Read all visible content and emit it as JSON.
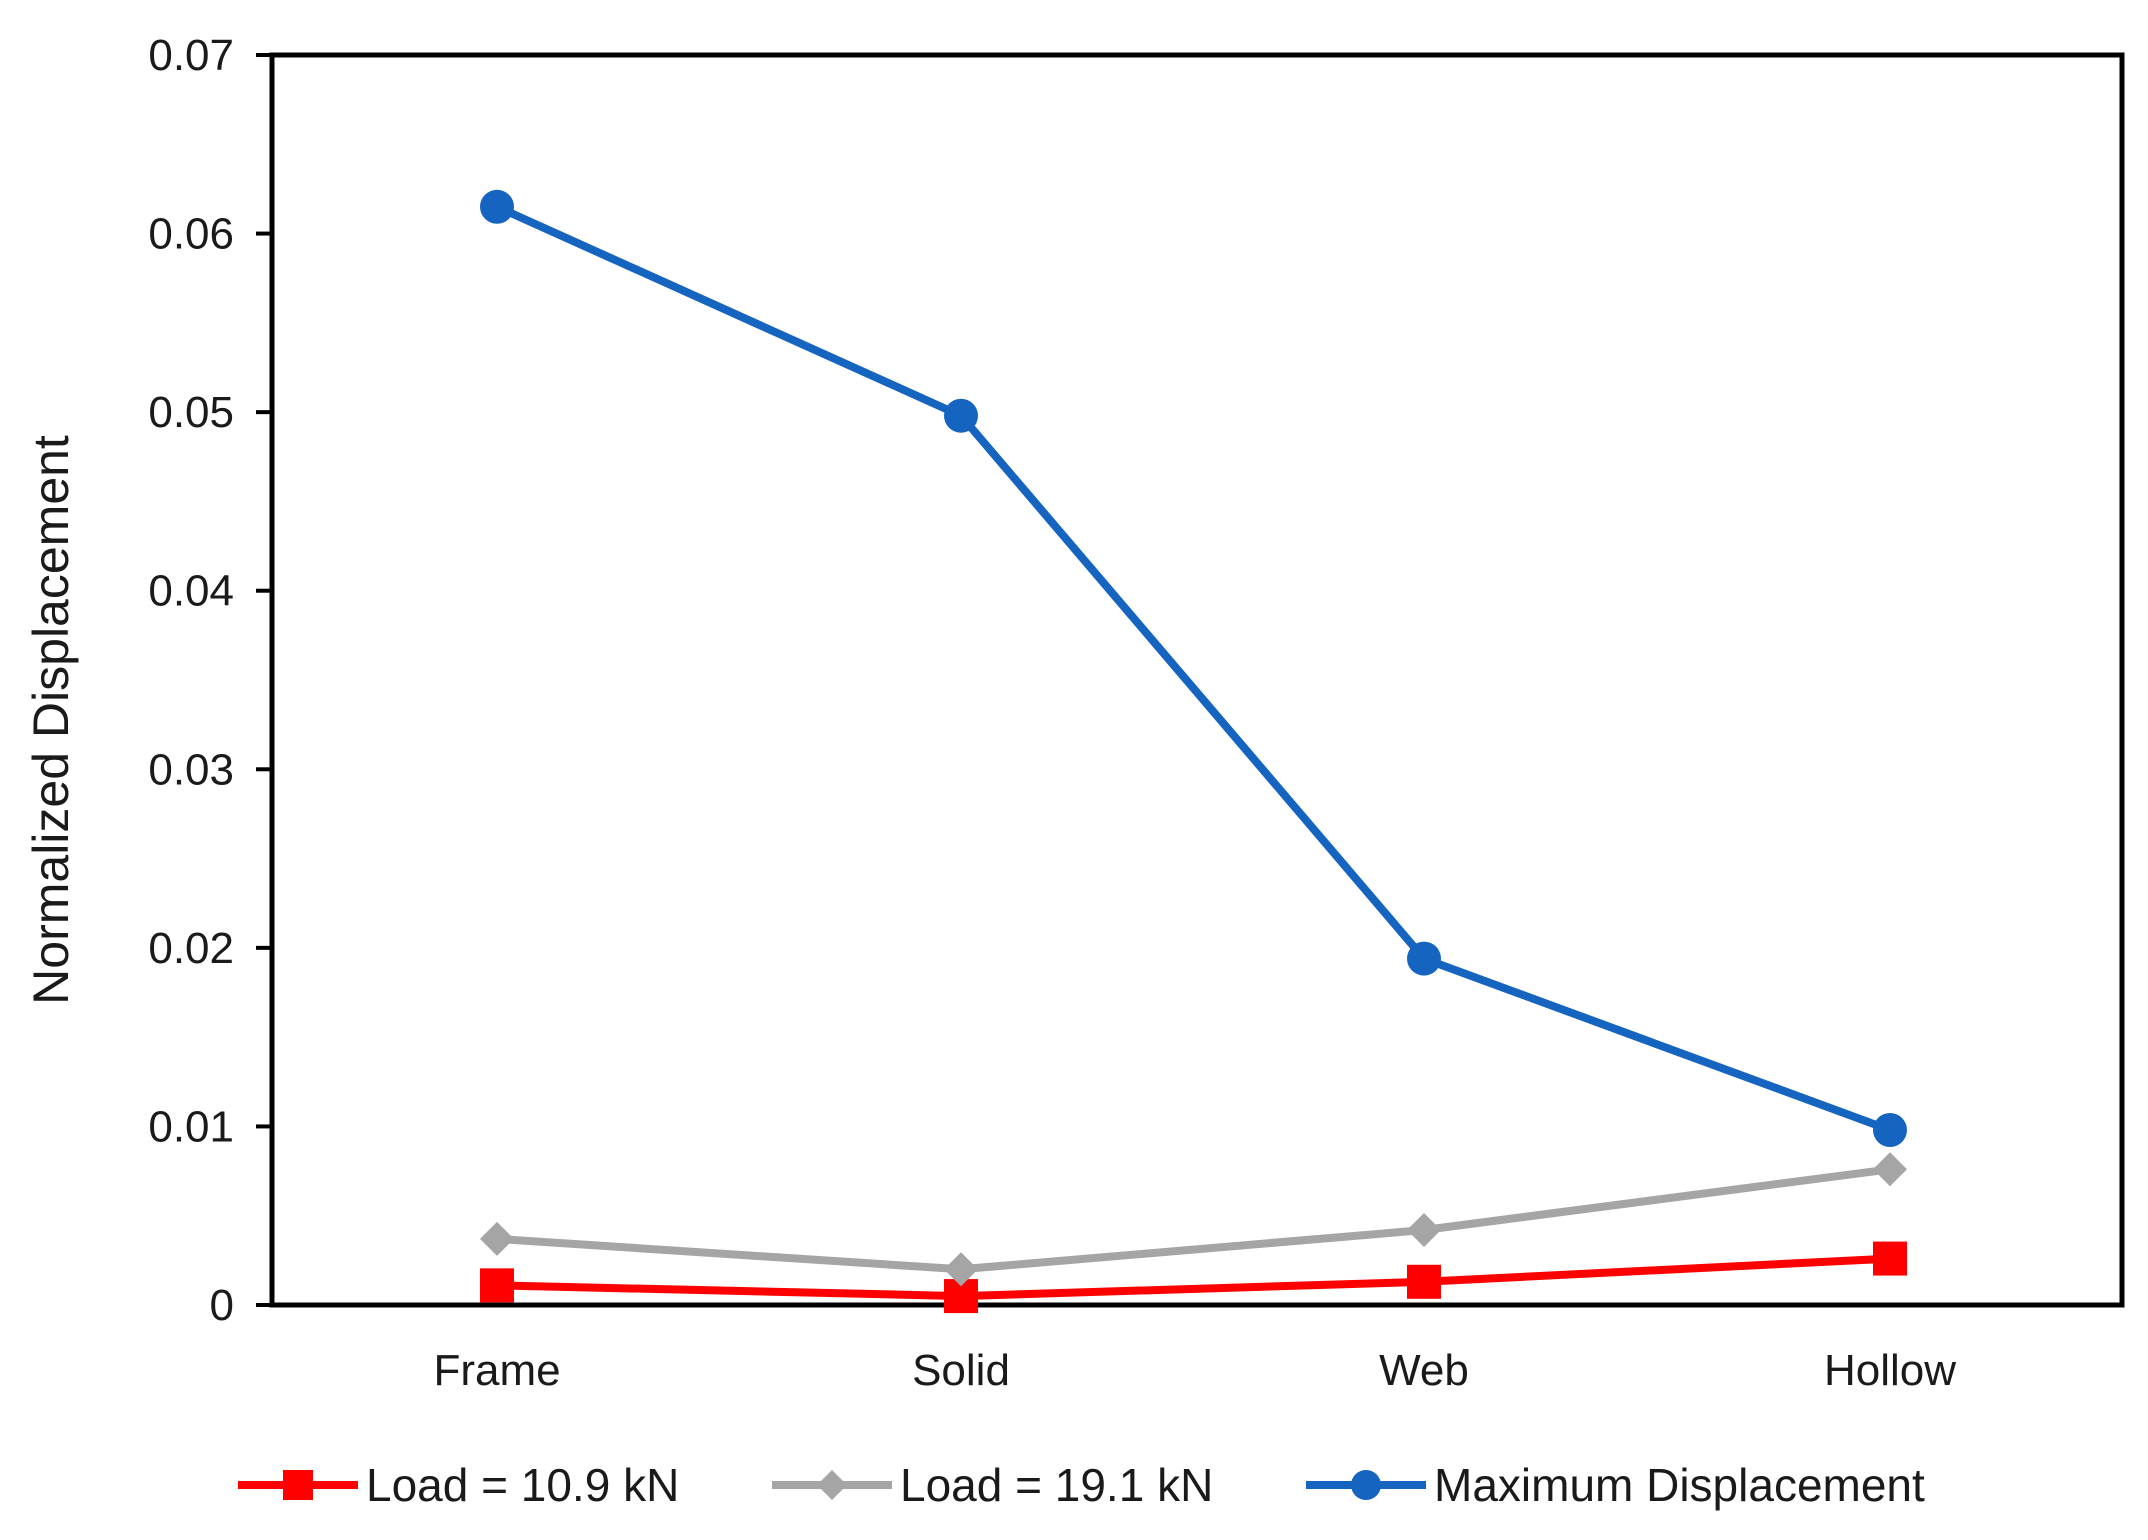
{
  "chart_data": {
    "type": "line",
    "title": "",
    "xlabel": "",
    "ylabel": "Normalized Displacement",
    "categories": [
      "Frame",
      "Solid",
      "Web",
      "Hollow"
    ],
    "ylim": [
      0,
      0.07
    ],
    "yticks": [
      0,
      0.01,
      0.02,
      0.03,
      0.04,
      0.05,
      0.06,
      0.07
    ],
    "ytick_labels": [
      "0",
      "0.01",
      "0.02",
      "0.03",
      "0.04",
      "0.05",
      "0.06",
      "0.07"
    ],
    "grid": false,
    "legend_position": "bottom",
    "series": [
      {
        "name": "Load = 10.9 kN",
        "color": "#ff0000",
        "marker": "square",
        "values": [
          0.0011,
          0.0005,
          0.0013,
          0.0026
        ]
      },
      {
        "name": "Load = 19.1 kN",
        "color": "#a5a5a5",
        "marker": "diamond",
        "values": [
          0.0037,
          0.002,
          0.0042,
          0.0076
        ]
      },
      {
        "name": "Maximum Displacement",
        "color": "#1565c0",
        "marker": "circle",
        "values": [
          0.0615,
          0.0498,
          0.0194,
          0.0098
        ]
      }
    ]
  }
}
